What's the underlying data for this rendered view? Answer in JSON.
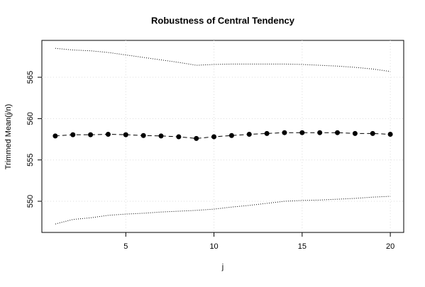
{
  "chart_data": {
    "type": "line",
    "title": "Robustness of Central Tendency",
    "x_label": "j",
    "y_label": "Trimmed Mean(j/n)",
    "x": [
      1,
      2,
      3,
      4,
      5,
      6,
      7,
      8,
      9,
      10,
      11,
      12,
      13,
      14,
      15,
      16,
      17,
      18,
      19,
      20
    ],
    "series": [
      {
        "color": "#000000",
        "line_style": "dashed",
        "markers": true,
        "values": [
          557.9,
          558.05,
          558.05,
          558.1,
          558.05,
          557.95,
          557.9,
          557.8,
          557.6,
          557.8,
          557.95,
          558.1,
          558.2,
          558.3,
          558.3,
          558.3,
          558.3,
          558.2,
          558.2,
          558.1
        ]
      },
      {
        "color": "#000000",
        "line_style": "dotted",
        "markers": false,
        "values": [
          568.5,
          568.3,
          568.2,
          568.0,
          567.7,
          567.4,
          567.1,
          566.8,
          566.45,
          566.55,
          566.6,
          566.6,
          566.6,
          566.6,
          566.55,
          566.45,
          566.35,
          566.2,
          566.0,
          565.7
        ]
      },
      {
        "color": "#000000",
        "line_style": "dotted",
        "markers": false,
        "values": [
          547.25,
          547.8,
          548.0,
          548.3,
          548.45,
          548.55,
          548.7,
          548.8,
          548.9,
          549.05,
          549.3,
          549.5,
          549.75,
          550.0,
          550.1,
          550.15,
          550.25,
          550.35,
          550.5,
          550.6
        ]
      }
    ],
    "xlim": [
      0.24,
      20.76
    ],
    "xticks": [
      5,
      10,
      15,
      20
    ],
    "ylim": [
      546.23,
      569.46
    ],
    "yticks": [
      550,
      555,
      560,
      565
    ],
    "grid": true
  }
}
